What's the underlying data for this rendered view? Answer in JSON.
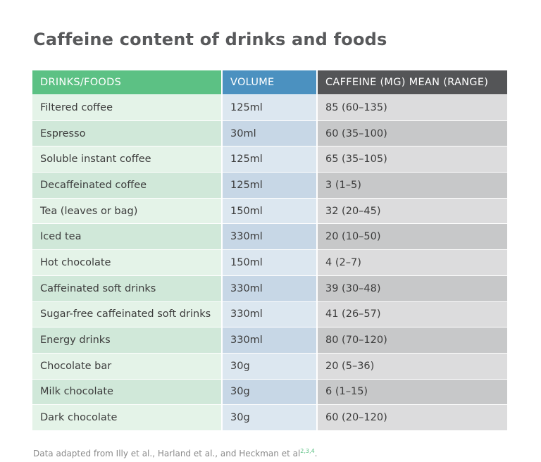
{
  "title": "Caffeine content of drinks and foods",
  "table": {
    "headers": [
      "DRINKS/FOODS",
      "VOLUME",
      "CAFFEINE (MG) MEAN (RANGE)"
    ],
    "rows": [
      [
        "Filtered coffee",
        "125ml",
        "85 (60–135)"
      ],
      [
        "Espresso",
        "30ml",
        "60 (35–100)"
      ],
      [
        "Soluble instant coffee",
        "125ml",
        "65 (35–105)"
      ],
      [
        "Decaffeinated coffee",
        "125ml",
        "3 (1–5)"
      ],
      [
        "Tea (leaves or bag)",
        "150ml",
        "32 (20–45)"
      ],
      [
        "Iced tea",
        "330ml",
        "20 (10–50)"
      ],
      [
        "Hot chocolate",
        "150ml",
        "4 (2–7)"
      ],
      [
        "Caffeinated soft drinks",
        "330ml",
        "39 (30–48)"
      ],
      [
        "Sugar-free caffeinated soft drinks",
        "330ml",
        "41 (26–57)"
      ],
      [
        "Energy drinks",
        "330ml",
        "80 (70–120)"
      ],
      [
        "Chocolate bar",
        "30g",
        "20 (5–36)"
      ],
      [
        "Milk chocolate",
        "30g",
        "6 (1–15)"
      ],
      [
        "Dark chocolate",
        "30g",
        "60 (20–120)"
      ]
    ]
  },
  "source": {
    "text": "Data adapted from Illy et al., Harland et al., and Heckman et al",
    "refs": "2,3,4",
    "end": "."
  },
  "colors": {
    "title": "#58595b",
    "header_drinks": "#5cc184",
    "header_volume": "#4b91c0",
    "header_caffeine": "#545557",
    "ref_superscript": "#5cc184"
  }
}
